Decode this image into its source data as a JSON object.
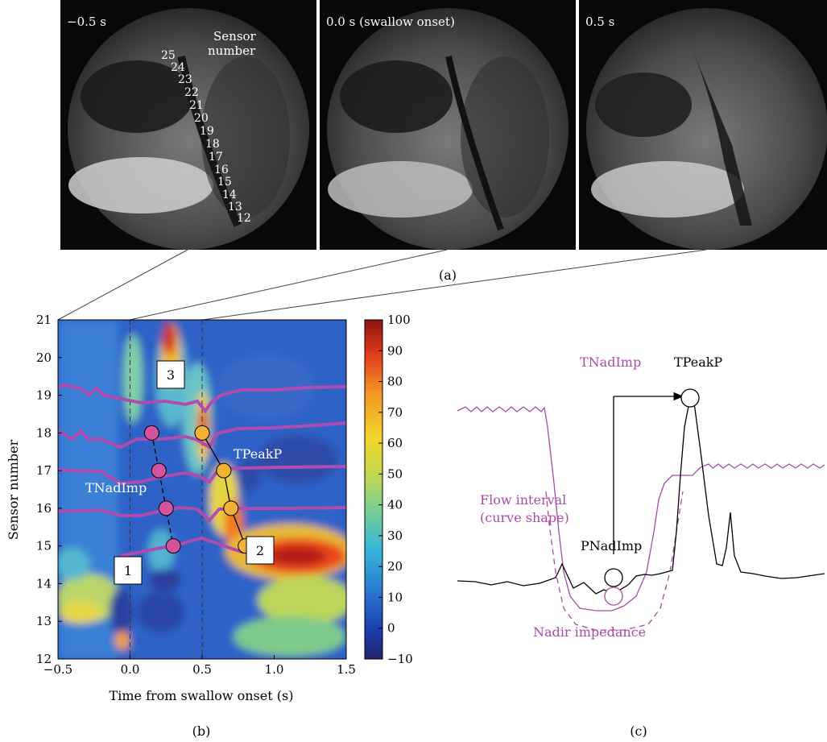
{
  "panel_a": {
    "frames": [
      {
        "time_label": "−0.5 s"
      },
      {
        "time_label": "0.0 s (swallow onset)"
      },
      {
        "time_label": "0.5 s"
      }
    ],
    "sensor_label_line1": "Sensor",
    "sensor_label_line2": "number",
    "sensor_numbers": [
      "25",
      "24",
      "23",
      "22",
      "21",
      "20",
      "19",
      "18",
      "17",
      "16",
      "15",
      "14",
      "13",
      "12"
    ],
    "caption": "(a)"
  },
  "panel_b": {
    "caption": "(b)",
    "annotations": {
      "box1": "1",
      "box2": "2",
      "box3": "3",
      "tnadimp": "TNadImp",
      "tpeakp": "TPeakP"
    }
  },
  "panel_c": {
    "caption": "(c)",
    "labels": {
      "tnadimp": "TNadImp",
      "tpeakp": "TPeakP",
      "flow_interval_line1": "Flow interval",
      "flow_interval_line2": "(curve shape)",
      "pnadimp": "PNadImp",
      "nadir_impedance": "Nadir impedance"
    }
  },
  "colors": {
    "impedance": "#a64ca6",
    "pressure": "#000000",
    "onset_marker": "#d2549d",
    "peak_marker": "#f2b233"
  },
  "chart_data": {
    "type": "heatmap",
    "xlabel": "Time from swallow onset (s)",
    "ylabel": "Sensor number",
    "xlim": [
      -0.5,
      1.5
    ],
    "ylim": [
      12,
      21
    ],
    "xticks": [
      -0.5,
      0.0,
      0.5,
      1.0,
      1.5
    ],
    "xtick_labels": [
      "−0.5",
      "0.0",
      "0.5",
      "1.0",
      "1.5"
    ],
    "yticks": [
      12,
      13,
      14,
      15,
      16,
      17,
      18,
      19,
      20,
      21
    ],
    "colorbar": {
      "min": -10,
      "max": 100,
      "ticks": [
        100,
        90,
        80,
        70,
        60,
        50,
        40,
        30,
        20,
        10,
        0,
        -10
      ],
      "tick_labels": [
        "100",
        "90",
        "80",
        "70",
        "60",
        "50",
        "40",
        "30",
        "20",
        "10",
        "0",
        "−10"
      ]
    },
    "dashed_time_markers": [
      -0.5,
      0.0,
      0.5
    ],
    "tnadimp_points": [
      {
        "t": 0.15,
        "sensor": 18
      },
      {
        "t": 0.2,
        "sensor": 17
      },
      {
        "t": 0.25,
        "sensor": 16
      },
      {
        "t": 0.3,
        "sensor": 15
      }
    ],
    "tpeakp_points": [
      {
        "t": 0.5,
        "sensor": 18
      },
      {
        "t": 0.65,
        "sensor": 17
      },
      {
        "t": 0.7,
        "sensor": 16
      },
      {
        "t": 0.8,
        "sensor": 15
      }
    ]
  }
}
